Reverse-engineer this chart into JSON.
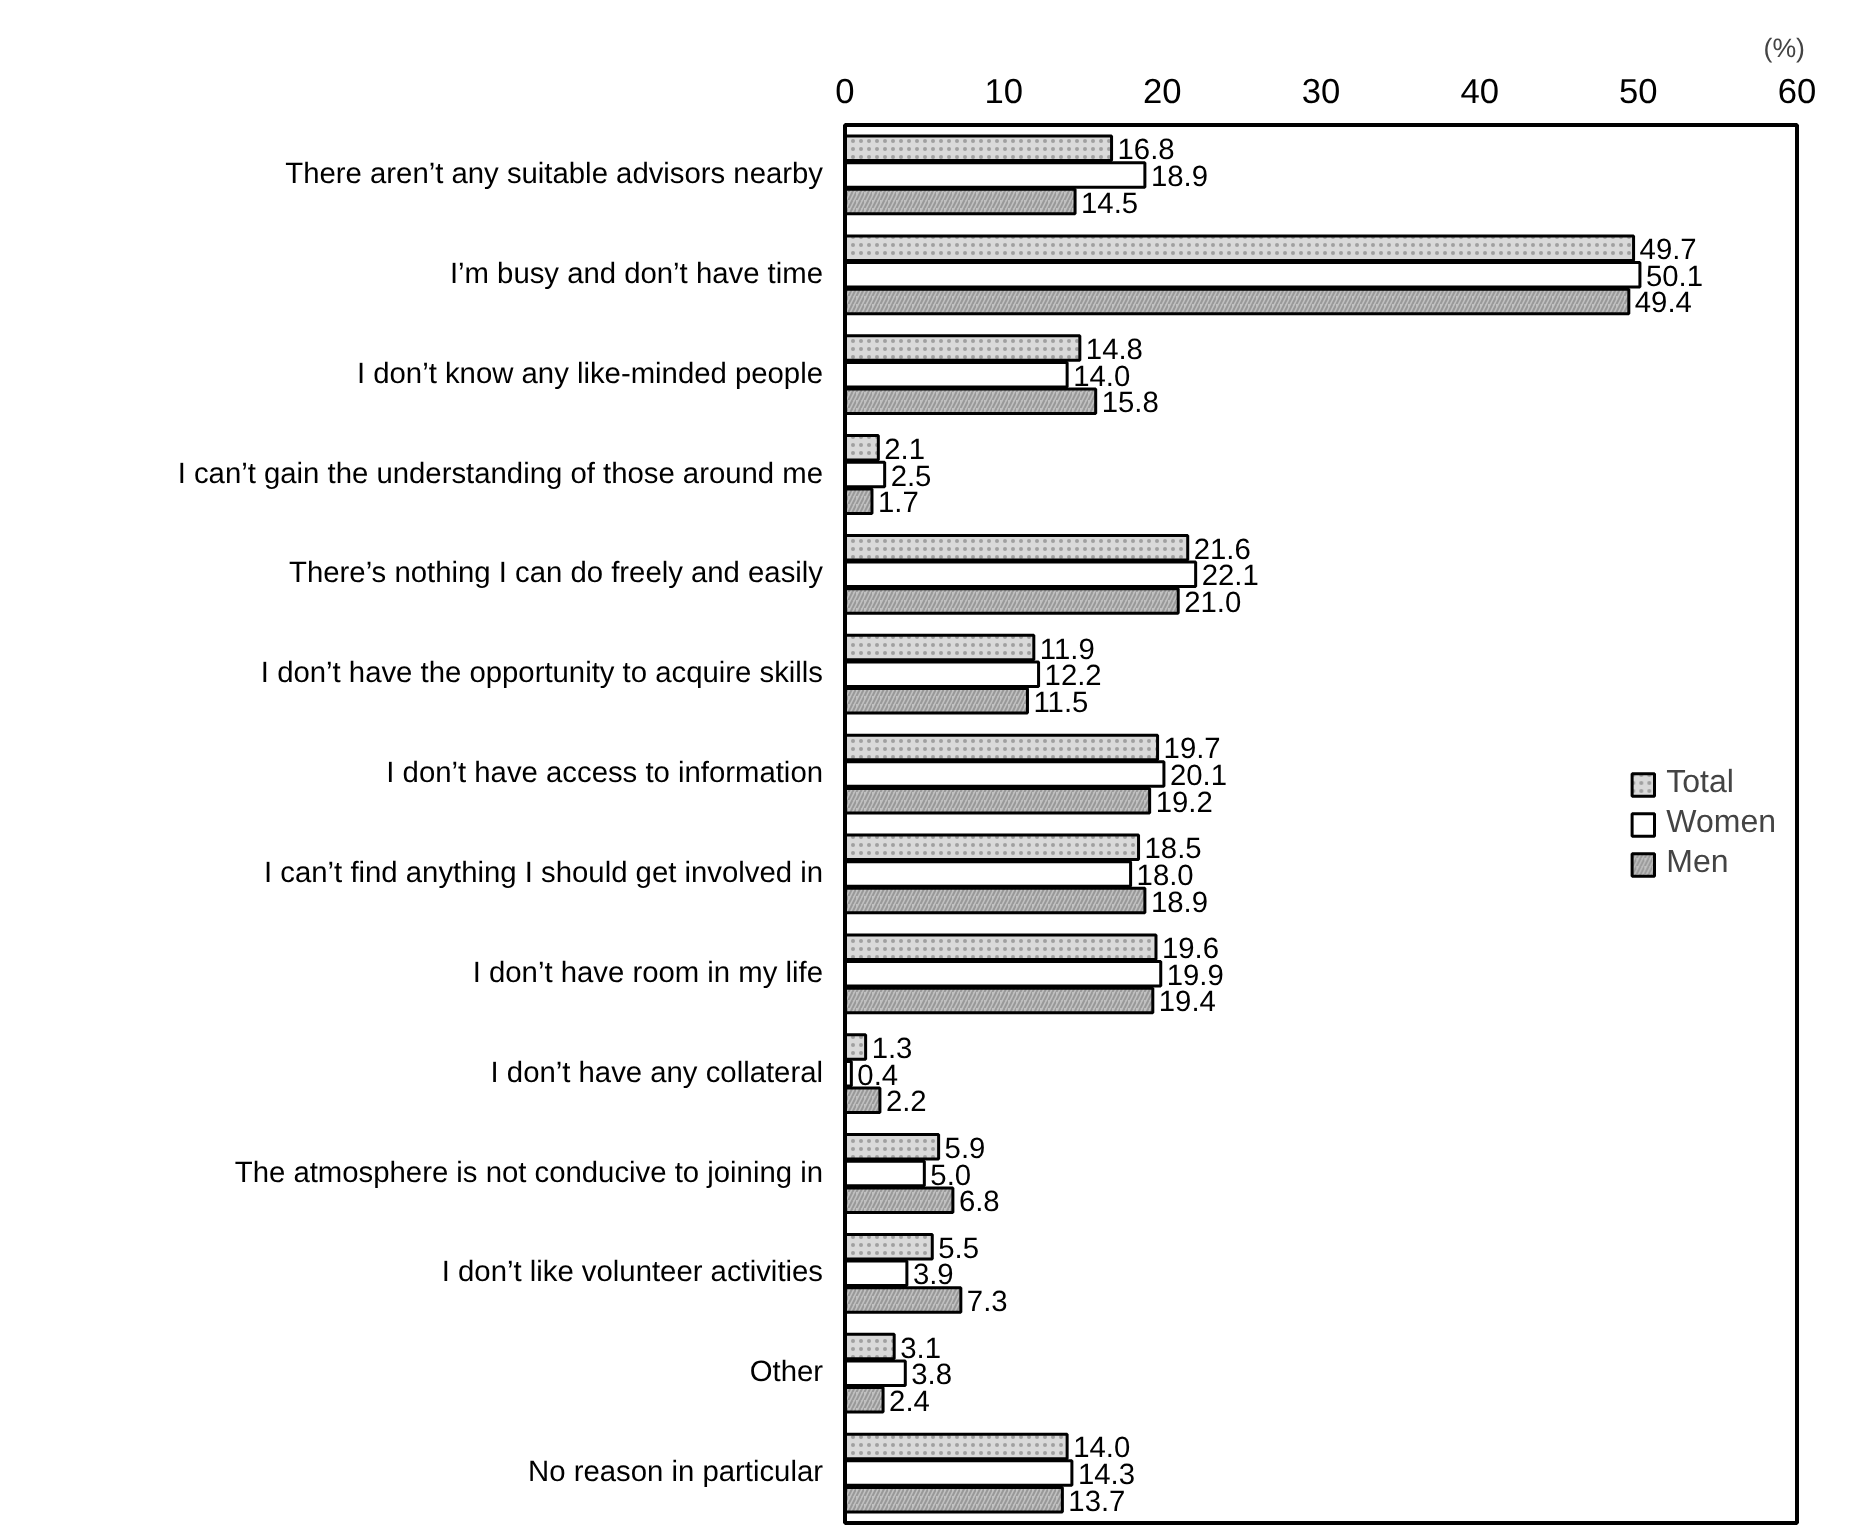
{
  "chart_data": {
    "type": "bar",
    "orientation": "horizontal",
    "categories": [
      "There aren’t any suitable advisors nearby",
      "I’m busy and don’t have time",
      "I don’t know any like-minded people",
      "I can’t gain the understanding of those around me",
      "There’s nothing I can do freely and easily",
      "I don’t have the opportunity to acquire skills",
      "I don’t have access to information",
      "I can’t find anything I should get involved in",
      "I don’t have room in my life",
      "I don’t have any collateral",
      "The atmosphere is not conducive to joining in",
      "I don’t like volunteer activities",
      "Other",
      "No reason in particular"
    ],
    "series": [
      {
        "name": "Total",
        "color": "#d9d9d9",
        "values": [
          16.8,
          49.7,
          14.8,
          2.1,
          21.6,
          11.9,
          19.7,
          18.5,
          19.6,
          1.3,
          5.9,
          5.5,
          3.1,
          14.0
        ],
        "value_labels": [
          "16.8",
          "49.7",
          "14.8",
          "2.1",
          "21.6",
          "11.9",
          "19.7",
          "18.5",
          "19.6",
          "1.3",
          "5.9",
          "5.5",
          "3.1",
          "14.0"
        ]
      },
      {
        "name": "Women",
        "color": "#ffffff",
        "values": [
          18.9,
          50.1,
          14.0,
          2.5,
          22.1,
          12.2,
          20.1,
          18.0,
          19.9,
          0.4,
          5.0,
          3.9,
          3.8,
          14.3
        ],
        "value_labels": [
          "18.9",
          "50.1",
          "14.0",
          "2.5",
          "22.1",
          "12.2",
          "20.1",
          "18.0",
          "19.9",
          "0.4",
          "5.0",
          "3.9",
          "3.8",
          "14.3"
        ]
      },
      {
        "name": "Men",
        "color": "#c0c0c0",
        "values": [
          14.5,
          49.4,
          15.8,
          1.7,
          21.0,
          11.5,
          19.2,
          18.9,
          19.4,
          2.2,
          6.8,
          7.3,
          2.4,
          13.7
        ],
        "value_labels": [
          "14.5",
          "49.4",
          "15.8",
          "1.7",
          "21.0",
          "11.5",
          "19.2",
          "18.9",
          "19.4",
          "2.2",
          "6.8",
          "7.3",
          "2.4",
          "13.7"
        ]
      }
    ],
    "xlim": [
      0,
      60
    ],
    "xticks": [
      0,
      10,
      20,
      30,
      40,
      50,
      60
    ],
    "annotations": [
      {
        "text": "(%)"
      }
    ],
    "legend": "right",
    "grid": false
  }
}
